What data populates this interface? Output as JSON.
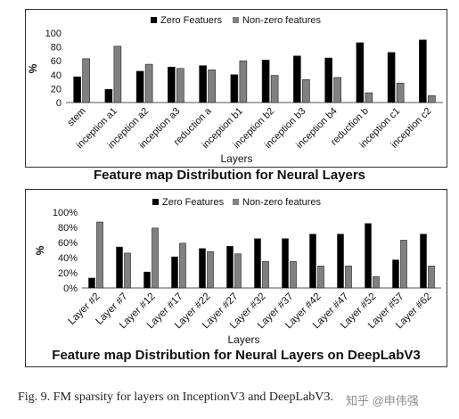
{
  "chart_data": [
    {
      "type": "bar",
      "title": "Feature map Distribution for Neural Layers",
      "xlabel": "Layers",
      "ylabel": "%",
      "ylim": [
        0,
        100
      ],
      "yticks": [
        "0",
        "20",
        "40",
        "60",
        "80",
        "100"
      ],
      "legend_position": "top",
      "categories": [
        "stem",
        "inception a1",
        "inception a2",
        "inception a3",
        "reduction a",
        "inception b1",
        "inception b2",
        "inception b3",
        "inception b4",
        "reduction b",
        "inception c1",
        "inception c2"
      ],
      "series": [
        {
          "name": "Zero Featuers",
          "color": "#000000",
          "values": [
            37,
            19,
            45,
            51,
            53,
            40,
            61,
            67,
            64,
            86,
            72,
            90
          ]
        },
        {
          "name": "Non-zero features",
          "color": "#808080",
          "values": [
            63,
            81,
            55,
            49,
            47,
            60,
            39,
            33,
            36,
            14,
            28,
            10
          ]
        }
      ]
    },
    {
      "type": "bar",
      "title": "Feature map Distribution for Neural Layers on DeepLabV3",
      "xlabel": "Layers",
      "ylabel": "%",
      "ylim": [
        0,
        100
      ],
      "yticks": [
        "0%",
        "20%",
        "40%",
        "60%",
        "80%",
        "100%"
      ],
      "legend_position": "top",
      "categories": [
        "Layer #2",
        "Layer #7",
        "Layer #12",
        "Layer #17",
        "Layer #22",
        "Layer #27",
        "Layer #32",
        "Layer #37",
        "Layer #42",
        "Layer #47",
        "Layer #52",
        "Layer #57",
        "Layer #62"
      ],
      "series": [
        {
          "name": "Zero Features",
          "color": "#000000",
          "values": [
            13,
            54,
            21,
            41,
            52,
            55,
            65,
            65,
            71,
            71,
            85,
            37,
            71
          ]
        },
        {
          "name": "Non-zero features",
          "color": "#808080",
          "values": [
            87,
            46,
            79,
            59,
            48,
            45,
            35,
            35,
            29,
            29,
            15,
            63,
            29
          ]
        }
      ]
    }
  ],
  "caption": "Fig. 9.   FM sparsity for layers on InceptionV3 and DeepLabV3.",
  "watermark": "知乎 @申伟强"
}
